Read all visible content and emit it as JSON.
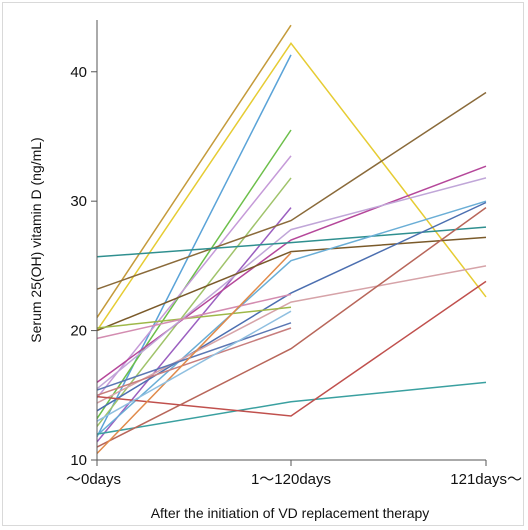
{
  "chart_data": {
    "type": "line",
    "title": "",
    "xlabel": "After the initiation of VD replacement therapy",
    "ylabel": "Serum 25(OH) vitamin D (ng/mL)",
    "categories": [
      "～0days",
      "1～120days",
      "121days～"
    ],
    "yticks": [
      10,
      20,
      30,
      40
    ],
    "yticks_labels": [
      "10",
      "20",
      "30",
      "40"
    ],
    "ylim": [
      10,
      44
    ],
    "grid": false,
    "legend": "none",
    "series": [
      {
        "color": "#c49a3a",
        "values": [
          21.0,
          43.6,
          null
        ]
      },
      {
        "color": "#e6cc33",
        "values": [
          20.0,
          42.2,
          22.6
        ]
      },
      {
        "color": "#5aa3d8",
        "values": [
          11.8,
          41.3,
          null
        ]
      },
      {
        "color": "#6cbf4a",
        "values": [
          13.2,
          35.5,
          null
        ]
      },
      {
        "color": "#c59ad8",
        "values": [
          14.8,
          33.5,
          null
        ]
      },
      {
        "color": "#9fc36a",
        "values": [
          12.6,
          31.8,
          null
        ]
      },
      {
        "color": "#9b5fc0",
        "values": [
          11.4,
          29.5,
          null
        ]
      },
      {
        "color": "#8a6a3a",
        "values": [
          23.2,
          28.5,
          38.4
        ]
      },
      {
        "color": "#b5479a",
        "values": [
          16.0,
          27.0,
          32.7
        ]
      },
      {
        "color": "#c0a6d8",
        "values": [
          15.5,
          27.8,
          31.8
        ]
      },
      {
        "color": "#2f8f8f",
        "values": [
          25.7,
          26.8,
          28.0
        ]
      },
      {
        "color": "#7a5a2a",
        "values": [
          20.0,
          26.1,
          27.2
        ]
      },
      {
        "color": "#6aaed6",
        "values": [
          11.9,
          25.4,
          30.0
        ]
      },
      {
        "color": "#4c6fb0",
        "values": [
          13.8,
          22.9,
          29.9
        ]
      },
      {
        "color": "#d6a3a8",
        "values": [
          14.4,
          22.2,
          25.0
        ]
      },
      {
        "color": "#c77d7d",
        "values": [
          15.0,
          20.2,
          null
        ]
      },
      {
        "color": "#9eb848",
        "values": [
          20.2,
          21.8,
          null
        ]
      },
      {
        "color": "#5b77b3",
        "values": [
          15.4,
          20.6,
          null
        ]
      },
      {
        "color": "#d38cb0",
        "values": [
          19.4,
          22.8,
          null
        ]
      },
      {
        "color": "#3aa0a0",
        "values": [
          12.0,
          14.5,
          16.0
        ]
      },
      {
        "color": "#c0504d",
        "values": [
          14.9,
          13.4,
          23.8
        ]
      },
      {
        "color": "#b8665a",
        "values": [
          11.0,
          18.6,
          29.5
        ]
      },
      {
        "color": "#e08a4a",
        "values": [
          10.5,
          26.0,
          null
        ]
      },
      {
        "color": "#8fbfe0",
        "values": [
          13.0,
          21.5,
          null
        ]
      }
    ]
  }
}
